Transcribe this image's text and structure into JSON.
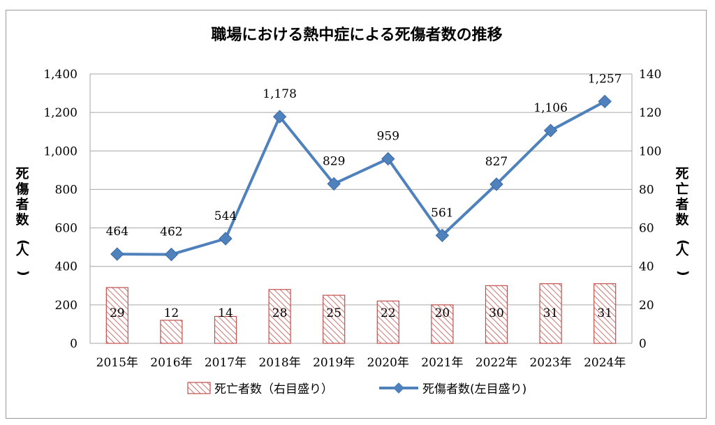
{
  "chart_data": {
    "type": "bar+line",
    "title": "職場における熱中症による死傷者数の推移",
    "categories": [
      "2015年",
      "2016年",
      "2017年",
      "2018年",
      "2019年",
      "2020年",
      "2021年",
      "2022年",
      "2023年",
      "2024年"
    ],
    "series": [
      {
        "name": "死亡者数（右目盛り）",
        "type": "bar",
        "axis": "right",
        "values": [
          29,
          12,
          14,
          28,
          25,
          22,
          20,
          30,
          31,
          31
        ],
        "color": "#c0504d"
      },
      {
        "name": "死傷者数(左目盛り)",
        "type": "line",
        "axis": "left",
        "values": [
          464,
          462,
          544,
          1178,
          829,
          959,
          561,
          827,
          1106,
          1257
        ],
        "labels": [
          "464",
          "462",
          "544",
          "1,178",
          "829",
          "959",
          "561",
          "827",
          "1,106",
          "1,257"
        ],
        "color": "#4f81bd"
      }
    ],
    "y_left": {
      "label": "死傷者数(人)",
      "lim": [
        0,
        1400
      ],
      "ticks": [
        "0",
        "200",
        "400",
        "600",
        "800",
        "1,000",
        "1,200",
        "1,400"
      ]
    },
    "y_right": {
      "label": "死亡者数(人)",
      "lim": [
        0,
        140
      ],
      "ticks": [
        "0",
        "20",
        "40",
        "60",
        "80",
        "100",
        "120",
        "140"
      ]
    },
    "grid": "horizontal-major",
    "legend": "bottom"
  }
}
